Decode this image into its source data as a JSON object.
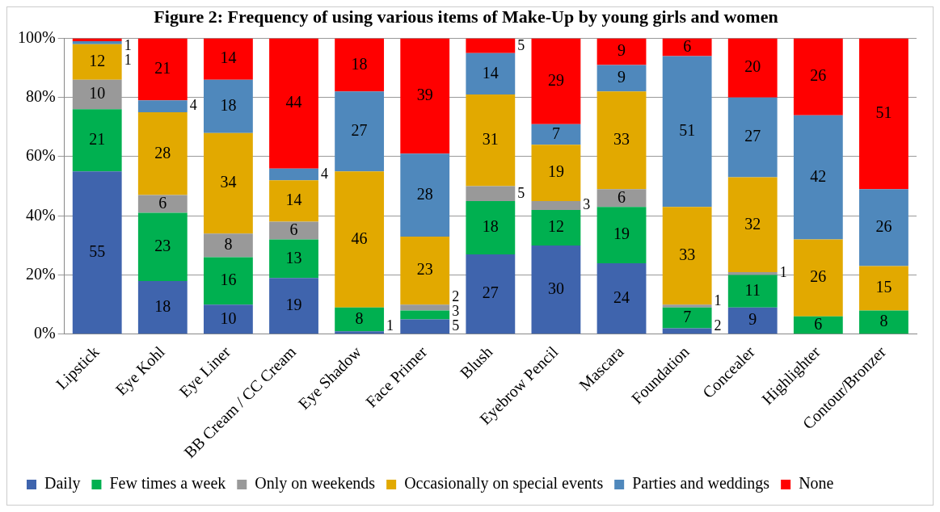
{
  "chart_data": {
    "type": "bar",
    "title": "Figure 2: Frequency of using various items of Make-Up by young girls and women",
    "categories": [
      "Lipstick",
      "Eye Kohl",
      "Eye Liner",
      "BB Cream / CC Cream",
      "Eye Shadow",
      "Face Primer",
      "Blush",
      "Eyebrow Pencil",
      "Mascara",
      "Foundation",
      "Concealer",
      "Highlighter",
      "Contour/Bronzer"
    ],
    "stacked": true,
    "data_labels": true,
    "grid": "y",
    "legend": "bottom",
    "ylim": [
      0,
      100
    ],
    "yticks": [
      {
        "value": 0,
        "label": "0%"
      },
      {
        "value": 20,
        "label": "20%"
      },
      {
        "value": 40,
        "label": "40%"
      },
      {
        "value": 60,
        "label": "60%"
      },
      {
        "value": 80,
        "label": "80%"
      },
      {
        "value": 100,
        "label": "100%"
      }
    ],
    "series": [
      {
        "name": "Daily",
        "color": "#3f64ad",
        "values": [
          55,
          18,
          10,
          19,
          1,
          5,
          27,
          30,
          24,
          2,
          9,
          null,
          null
        ]
      },
      {
        "name": "Few times a week",
        "color": "#00b050",
        "values": [
          21,
          23,
          16,
          13,
          8,
          3,
          18,
          12,
          19,
          7,
          11,
          6,
          8
        ]
      },
      {
        "name": "Only on weekends",
        "color": "#999999",
        "values": [
          10,
          6,
          8,
          6,
          null,
          2,
          5,
          3,
          6,
          1,
          1,
          null,
          null
        ]
      },
      {
        "name": "Occasionally on special events",
        "color": "#e2a900",
        "values": [
          12,
          28,
          34,
          14,
          46,
          23,
          31,
          19,
          33,
          33,
          32,
          26,
          15
        ]
      },
      {
        "name": "Parties and weddings",
        "color": "#4f88bc",
        "values": [
          1,
          4,
          18,
          4,
          27,
          28,
          14,
          7,
          9,
          51,
          27,
          42,
          26
        ]
      },
      {
        "name": "None",
        "color": "#ff0000",
        "values": [
          1,
          21,
          14,
          44,
          18,
          39,
          5,
          29,
          9,
          6,
          20,
          26,
          51
        ]
      }
    ]
  }
}
